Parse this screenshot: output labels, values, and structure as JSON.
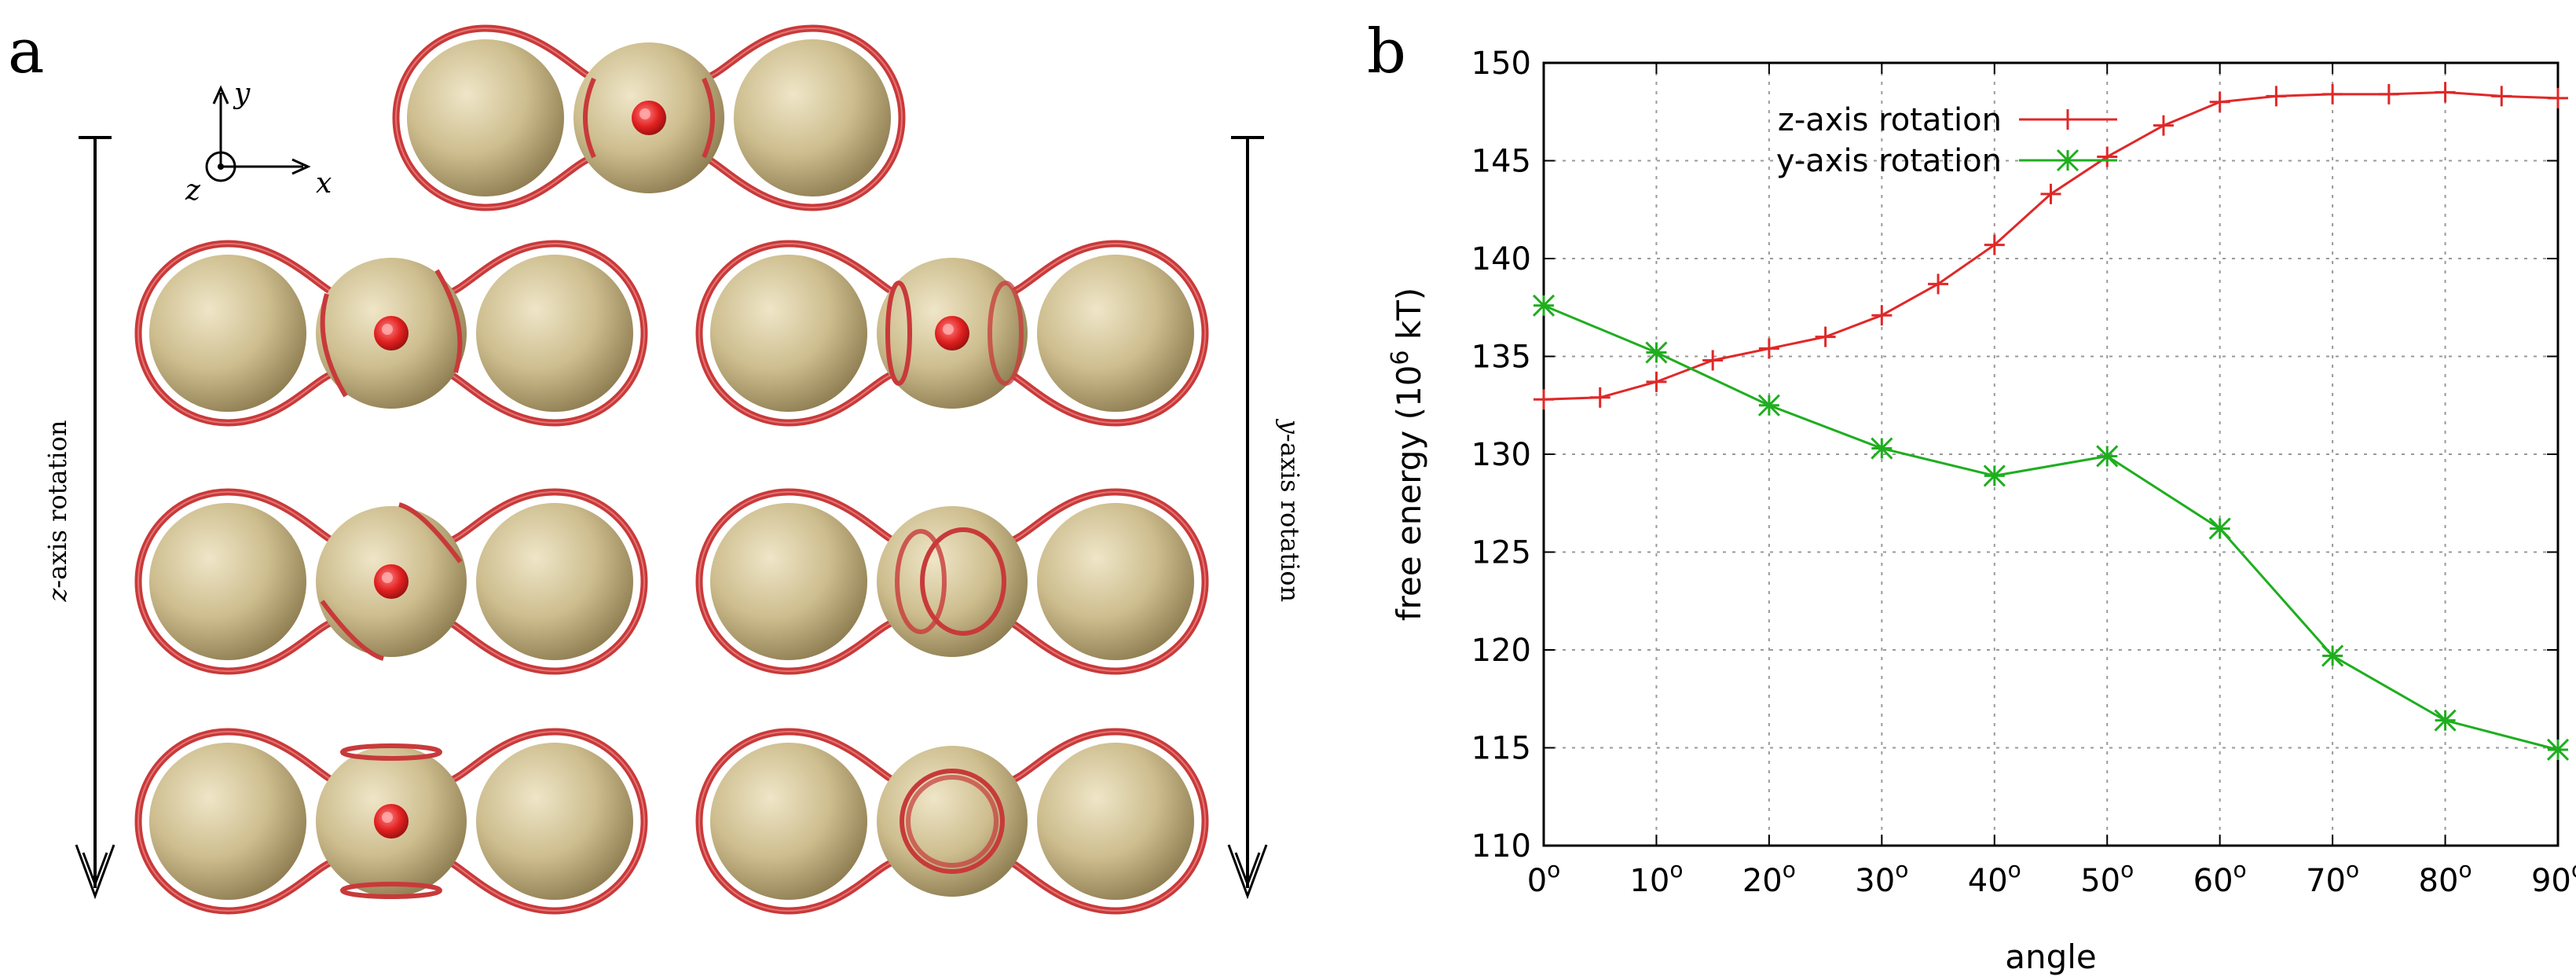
{
  "panel_a": {
    "letter": "a",
    "axes": {
      "x": "x",
      "y": "y",
      "z": "z"
    },
    "left_arrow_label": {
      "italic": "z",
      "rest": "-axis rotation"
    },
    "right_arrow_label": {
      "italic": "y",
      "rest": "-axis rotation"
    },
    "colors": {
      "sphere": "#cdbd8e",
      "membrane": "#c83a3a",
      "marker": "#e02020"
    }
  },
  "panel_b": {
    "letter": "b"
  },
  "chart_data": {
    "type": "line",
    "title": "",
    "xlabel": "angle",
    "ylabel": {
      "main": "free energy (10",
      "sup": "6",
      "end": " kT)"
    },
    "xlim": [
      0,
      90
    ],
    "ylim": [
      110,
      150
    ],
    "xticks": [
      0,
      10,
      20,
      30,
      40,
      50,
      60,
      70,
      80,
      90
    ],
    "xtick_base": [
      "0",
      "10",
      "20",
      "30",
      "40",
      "50",
      "60",
      "70",
      "80",
      "90"
    ],
    "xtick_sup": "o",
    "yticks": [
      110,
      115,
      120,
      125,
      130,
      135,
      140,
      145,
      150
    ],
    "ytick_labels": [
      "110",
      "115",
      "120",
      "125",
      "130",
      "135",
      "140",
      "145",
      "150"
    ],
    "grid": true,
    "legend": "top-left",
    "series": [
      {
        "name": "z-axis rotation",
        "color": "#e02828",
        "marker": "plus",
        "x": [
          0,
          5,
          10,
          15,
          20,
          25,
          30,
          35,
          40,
          45,
          50,
          55,
          60,
          65,
          70,
          75,
          80,
          85,
          90
        ],
        "y": [
          132.8,
          132.9,
          133.7,
          134.8,
          135.4,
          136.0,
          137.1,
          138.7,
          140.7,
          143.3,
          145.2,
          146.8,
          148.0,
          148.3,
          148.4,
          148.4,
          148.5,
          148.3,
          148.2
        ]
      },
      {
        "name": "y-axis rotation",
        "color": "#1fae1f",
        "marker": "star",
        "x": [
          0,
          10,
          20,
          30,
          40,
          50,
          60,
          70,
          80,
          90
        ],
        "y": [
          137.6,
          135.2,
          132.5,
          130.3,
          128.9,
          129.9,
          126.2,
          119.7,
          116.4,
          114.9
        ]
      }
    ]
  }
}
